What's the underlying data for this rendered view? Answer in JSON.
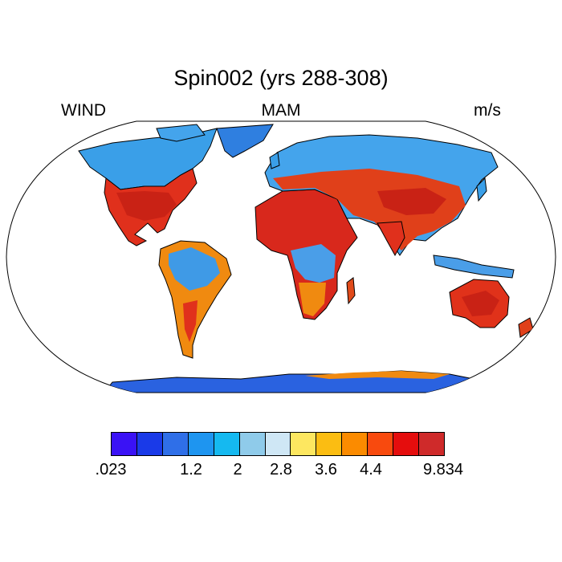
{
  "title": "Spin002 (yrs 288-308)",
  "left_label": "WIND",
  "center_label": "MAM",
  "right_label": "m/s",
  "colorbar": {
    "colors": [
      "#3a12f5",
      "#1a3ae8",
      "#2f6fe8",
      "#1e95f0",
      "#15b9f0",
      "#8fcbea",
      "#cfe7f5",
      "#fde760",
      "#fbbd12",
      "#fb8b00",
      "#f84a0e",
      "#e50d0d",
      "#cf2a2a"
    ],
    "labels": [
      ".023",
      "1.2",
      "2",
      "2.8",
      "3.6",
      "4.4",
      "9.834"
    ]
  },
  "map": {
    "ocean": "#ffffff",
    "outline": "#000000",
    "field": {
      "north_america_north": "#3a9fe8",
      "north_america_south": "#e0301c",
      "greenland": "#2f7fe0",
      "south_america_interior": "#3f9ae6",
      "south_america_margin": "#f08a10",
      "africa_north": "#d8281c",
      "africa_south": "#4a9ee8",
      "eurasia_north": "#44a4ec",
      "eurasia_south": "#e0401a",
      "australia": "#e0321a",
      "antarctica": "#2a62e0",
      "antarctica_edge": "#f08a10"
    }
  }
}
